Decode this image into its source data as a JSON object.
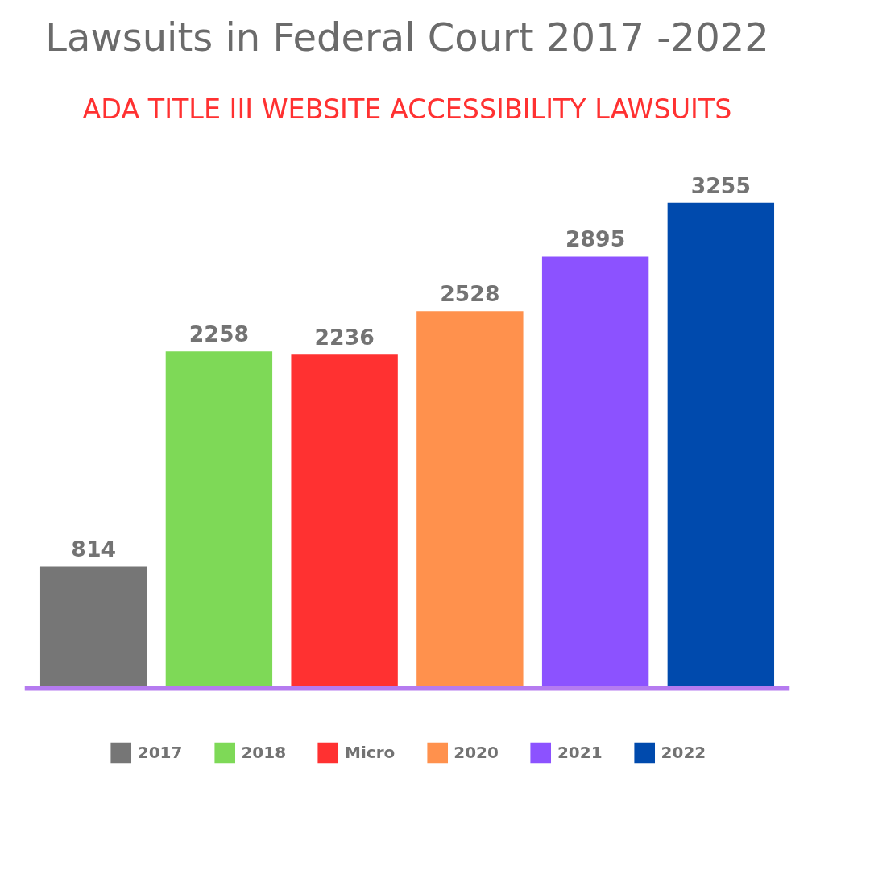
{
  "chart_data": {
    "type": "bar",
    "title": "Lawsuits in Federal Court 2017 -2022",
    "subtitle": "ADA TITLE III WEBSITE ACCESSIBILITY LAWSUITS",
    "categories": [
      null,
      null,
      null,
      null,
      null,
      null
    ],
    "series": [
      {
        "name": "2017",
        "color": "#767676",
        "values": [
          814,
          null,
          null,
          null,
          null,
          null
        ]
      },
      {
        "name": "2018",
        "color": "#7ed957",
        "values": [
          null,
          2258,
          null,
          null,
          null,
          null
        ]
      },
      {
        "name": "Micro",
        "color": "#ff3131",
        "values": [
          null,
          null,
          2236,
          null,
          null,
          null
        ]
      },
      {
        "name": "2020",
        "color": "#ff914d",
        "values": [
          null,
          null,
          null,
          2528,
          null,
          null
        ]
      },
      {
        "name": "2021",
        "color": "#8c52ff",
        "values": [
          null,
          null,
          null,
          null,
          2895,
          null
        ]
      },
      {
        "name": "2022",
        "color": "#004aad",
        "values": [
          null,
          null,
          null,
          null,
          null,
          3255
        ]
      }
    ],
    "stacked": true,
    "data_labels": true,
    "legend": "bottom",
    "grid": false,
    "tick_labels": false
  }
}
